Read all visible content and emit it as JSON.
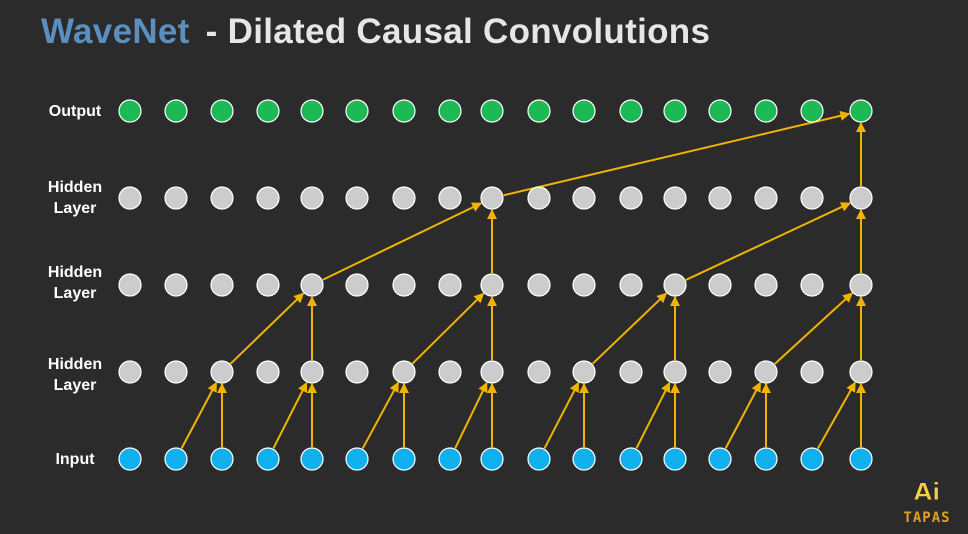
{
  "title": {
    "brand": "WaveNet",
    "rest": "- Dilated Causal Convolutions"
  },
  "rows": [
    {
      "id": "output",
      "label_lines": [
        "Output"
      ],
      "color": "#1db954"
    },
    {
      "id": "hidden3",
      "label_lines": [
        "Hidden",
        "Layer"
      ],
      "color": "#cccccc"
    },
    {
      "id": "hidden2",
      "label_lines": [
        "Hidden",
        "Layer"
      ],
      "color": "#cccccc"
    },
    {
      "id": "hidden1",
      "label_lines": [
        "Hidden",
        "Layer"
      ],
      "color": "#cccccc"
    },
    {
      "id": "input",
      "label_lines": [
        "Input"
      ],
      "color": "#10b0ee"
    }
  ],
  "nodes_per_row": 17,
  "dilations": {
    "hidden1": 1,
    "hidden2": 2,
    "hidden3": 4,
    "output": 8
  },
  "colors": {
    "background": "#2b2b2b",
    "arrow": "#f0b400",
    "title_brand": "#5a8fc0",
    "title_text": "#e6e6e6",
    "node_outline": "#ffffff"
  },
  "logo": {
    "text_top": "Ai",
    "text_bottom": "TAPAS",
    "colors": [
      "#f5d142",
      "#e0a020"
    ]
  }
}
